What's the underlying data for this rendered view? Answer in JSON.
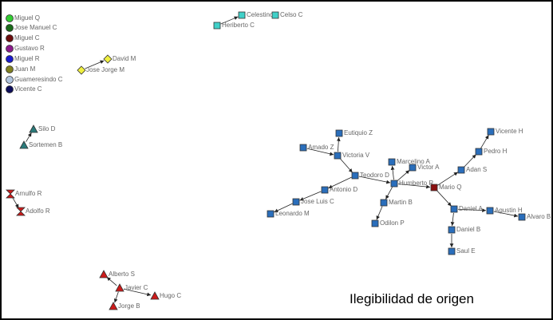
{
  "nodes": [
    {
      "label": "Miguel Q"
    },
    {
      "label": "Jose Manuel C"
    },
    {
      "label": "Miguel C"
    },
    {
      "label": "Gustavo R"
    },
    {
      "label": "Miguel R"
    },
    {
      "label": "Juan M"
    },
    {
      "label": "Guameresindo C"
    },
    {
      "label": "Vicente C"
    },
    {
      "label": "Celestino"
    },
    {
      "label": "Celso C"
    },
    {
      "label": "Heriberto C"
    },
    {
      "label": "David M"
    },
    {
      "label": "Jose Jorge M"
    },
    {
      "label": "Silo D"
    },
    {
      "label": "Sortemen B"
    },
    {
      "label": "Arnulfo R"
    },
    {
      "label": "Adolfo R"
    },
    {
      "label": "Alberto S"
    },
    {
      "label": "Javier C"
    },
    {
      "label": "Hugo C"
    },
    {
      "label": "Jorge B"
    },
    {
      "label": "Eutiquio Z"
    },
    {
      "label": "Amado Z"
    },
    {
      "label": "Victoria V"
    },
    {
      "label": "Teodoro D"
    },
    {
      "label": "Marcelino A"
    },
    {
      "label": "Victor A"
    },
    {
      "label": "Humberto R"
    },
    {
      "label": "Mario Q"
    },
    {
      "label": "Antonio D"
    },
    {
      "label": "Jose Luis C"
    },
    {
      "label": "Leonardo M"
    },
    {
      "label": "Martin B"
    },
    {
      "label": "Odilon P"
    },
    {
      "label": "Vicente H"
    },
    {
      "label": "Pedro H"
    },
    {
      "label": "Adan S"
    },
    {
      "label": "Daniel A"
    },
    {
      "label": "Agustin H"
    },
    {
      "label": "Alvaro B"
    },
    {
      "label": "Daniel B"
    },
    {
      "label": "Saul E"
    }
  ],
  "caption": "Ilegibilidad de origen"
}
